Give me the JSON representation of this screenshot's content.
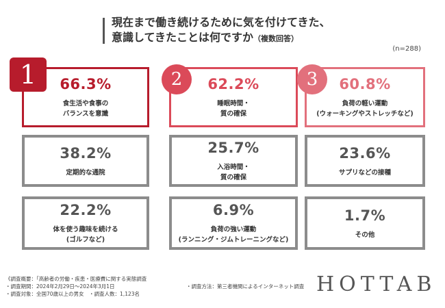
{
  "header": {
    "title_line1": "現在まで働き続けるために気を付けてきた、",
    "title_line2": "意識してきたことは何ですか",
    "title_suffix": "（複数回答）",
    "n_note": "(n=288)"
  },
  "chart_data": {
    "type": "table",
    "items": [
      {
        "rank": "1",
        "value": 66.3,
        "pct_text": "66.3%",
        "label": "食生活や食事の\nバランスを意識"
      },
      {
        "rank": "2",
        "value": 62.2,
        "pct_text": "62.2%",
        "label": "睡眠時間・\n質の確保"
      },
      {
        "rank": "3",
        "value": 60.8,
        "pct_text": "60.8%",
        "label": "負荷の軽い運動\n(ウォーキングやストレッチなど)"
      },
      {
        "rank": "",
        "value": 38.2,
        "pct_text": "38.2%",
        "label": "定期的な通院"
      },
      {
        "rank": "",
        "value": 25.7,
        "pct_text": "25.7%",
        "label": "入浴時間・\n質の確保"
      },
      {
        "rank": "",
        "value": 23.6,
        "pct_text": "23.6%",
        "label": "サプリなどの接種"
      },
      {
        "rank": "",
        "value": 22.2,
        "pct_text": "22.2%",
        "label": "体を使う趣味を続ける\n(ゴルフなど)"
      },
      {
        "rank": "",
        "value": 6.9,
        "pct_text": "6.9%",
        "label": "負荷の強い運動\n(ランニング・ジムトレーニングなど)"
      },
      {
        "rank": "",
        "value": 1.7,
        "pct_text": "1.7%",
        "label": "その他"
      }
    ]
  },
  "colors": {
    "rank1": "#b71c2c",
    "rank2": "#db4a59",
    "rank3": "#e2707c",
    "other": "#8c8c8c"
  },
  "footer": {
    "line1": "《調査概要：「高齢者の労働・疾患・医療費に関する実態調査",
    "line2": "・調査期間：2024年2月29日〜2024年3月1日",
    "line3": "・調査対象：全国70歳以上の男女　・調査人数：1,123名",
    "method": "・調査方法：第三者機関によるインターネット調査"
  },
  "logo": "HOTTAB"
}
